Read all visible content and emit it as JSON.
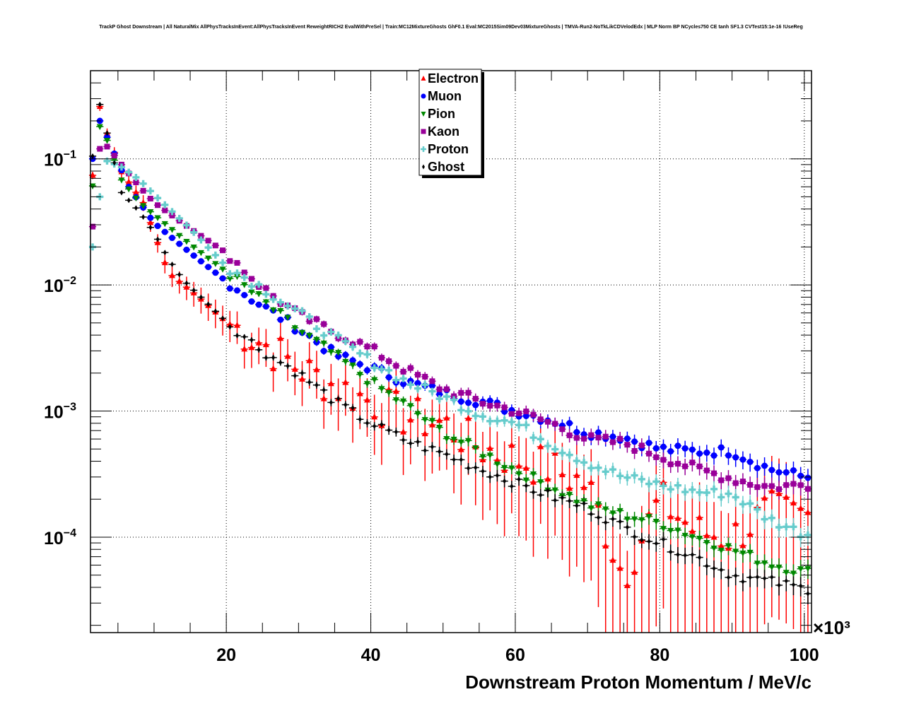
{
  "chart_data": {
    "type": "scatter",
    "title": "TrackP Ghost Downstream | All NaturalMix AllPhysTracksInEvent:AllPhysTracksInEvent ReweightRICH2 EvalWithPreSel | Train:MC12MixtureGhosts GhF0.1 Eval:MC2015Sim09Dev03MixtureGhosts | TMVA-Run2-NoTkLikCDVelodEdx | MLP Norm BP NCycles750 CE tanh SF1.3 CVTest15:1e-16 !UseReg",
    "xlabel": "Downstream Proton Momentum / MeV/c",
    "ylabel": "",
    "x_multiplier_label": "×10³",
    "xlim": [
      1.2,
      101
    ],
    "ylim": [
      1.75e-05,
      0.5
    ],
    "yscale": "log",
    "grid": true,
    "x_ticks": [
      "20",
      "40",
      "60",
      "80",
      "100"
    ],
    "x_tick_values": [
      20,
      40,
      60,
      80,
      100
    ],
    "y_ticks": [
      {
        "base": "10",
        "exp": "−1",
        "value": 0.1
      },
      {
        "base": "10",
        "exp": "−2",
        "value": 0.01
      },
      {
        "base": "10",
        "exp": "−3",
        "value": 0.001
      },
      {
        "base": "10",
        "exp": "−4",
        "value": 0.0001
      }
    ],
    "legend_position": "top-center",
    "x_anchor_note": "bin centres in thousands of MeV/c",
    "series": [
      {
        "name": "Electron",
        "color": "#ff0000",
        "marker": "triangle-up",
        "anchors": [
          [
            1.5,
            0.074
          ],
          [
            2.5,
            0.26
          ],
          [
            3.5,
            0.16
          ],
          [
            5.5,
            0.079
          ],
          [
            8.5,
            0.045
          ],
          [
            12,
            0.0125
          ],
          [
            16,
            0.0082
          ],
          [
            20,
            0.0051
          ],
          [
            25,
            0.0035
          ],
          [
            30,
            0.0022
          ],
          [
            35,
            0.0016
          ],
          [
            40,
            0.0012
          ],
          [
            45,
            0.0009
          ],
          [
            50,
            0.0008
          ],
          [
            55,
            0.00052
          ],
          [
            60,
            0.00042
          ],
          [
            65,
            0.00035
          ],
          [
            70,
            0.00026
          ],
          [
            75,
            5e-05
          ],
          [
            80,
            0.0002
          ],
          [
            85,
            0.00011
          ],
          [
            90,
            0.0001
          ],
          [
            95,
            0.00016
          ],
          [
            100,
            0.00015
          ]
        ]
      },
      {
        "name": "Muon",
        "color": "#0000ff",
        "marker": "circle",
        "anchors": [
          [
            1.5,
            0.1
          ],
          [
            2.5,
            0.2
          ],
          [
            4.5,
            0.11
          ],
          [
            6.5,
            0.06
          ],
          [
            10,
            0.031
          ],
          [
            15,
            0.018
          ],
          [
            20,
            0.0107
          ],
          [
            25,
            0.0068
          ],
          [
            30,
            0.0045
          ],
          [
            35,
            0.0028
          ],
          [
            40,
            0.0022
          ],
          [
            45,
            0.0017
          ],
          [
            50,
            0.0014
          ],
          [
            55,
            0.0012
          ],
          [
            60,
            0.001
          ],
          [
            65,
            0.00085
          ],
          [
            70,
            0.00068
          ],
          [
            75,
            0.00062
          ],
          [
            80,
            0.0005
          ],
          [
            85,
            0.00048
          ],
          [
            90,
            0.00048
          ],
          [
            95,
            0.00035
          ],
          [
            100,
            0.0003
          ]
        ]
      },
      {
        "name": "Pion",
        "color": "#008800",
        "marker": "triangle-down",
        "anchors": [
          [
            1.5,
            0.061
          ],
          [
            2.5,
            0.18
          ],
          [
            3.5,
            0.14
          ],
          [
            5.5,
            0.068
          ],
          [
            8,
            0.045
          ],
          [
            10,
            0.036
          ],
          [
            15,
            0.021
          ],
          [
            20,
            0.0127
          ],
          [
            25,
            0.0075
          ],
          [
            30,
            0.0044
          ],
          [
            35,
            0.0028
          ],
          [
            40,
            0.0017
          ],
          [
            45,
            0.0011
          ],
          [
            50,
            0.00068
          ],
          [
            55,
            0.00048
          ],
          [
            60,
            0.00034
          ],
          [
            65,
            0.00025
          ],
          [
            70,
            0.00018
          ],
          [
            75,
            0.00015
          ],
          [
            80,
            0.00013
          ],
          [
            85,
            0.0001
          ],
          [
            90,
            8e-05
          ],
          [
            95,
            6.2e-05
          ],
          [
            100,
            5.3e-05
          ]
        ]
      },
      {
        "name": "Kaon",
        "color": "#990099",
        "marker": "square",
        "anchors": [
          [
            1.5,
            0.029
          ],
          [
            2.5,
            0.12
          ],
          [
            3.5,
            0.125
          ],
          [
            5.5,
            0.09
          ],
          [
            8,
            0.06
          ],
          [
            10,
            0.045
          ],
          [
            15,
            0.028
          ],
          [
            20,
            0.018
          ],
          [
            25,
            0.0095
          ],
          [
            30,
            0.0058
          ],
          [
            35,
            0.0042
          ],
          [
            40,
            0.0031
          ],
          [
            45,
            0.0021
          ],
          [
            50,
            0.0015
          ],
          [
            55,
            0.0012
          ],
          [
            60,
            0.001
          ],
          [
            65,
            0.0008
          ],
          [
            70,
            0.0006
          ],
          [
            75,
            0.00056
          ],
          [
            80,
            0.00044
          ],
          [
            85,
            0.00035
          ],
          [
            90,
            0.00029
          ],
          [
            95,
            0.00025
          ],
          [
            100,
            0.00026
          ]
        ]
      },
      {
        "name": "Proton",
        "color": "#66cccc",
        "marker": "cross",
        "anchors": [
          [
            1.5,
            0.02
          ],
          [
            2.5,
            0.05
          ],
          [
            3.5,
            0.096
          ],
          [
            5.5,
            0.086
          ],
          [
            8,
            0.068
          ],
          [
            10,
            0.052
          ],
          [
            15,
            0.028
          ],
          [
            20,
            0.014
          ],
          [
            25,
            0.0095
          ],
          [
            30,
            0.006
          ],
          [
            35,
            0.0038
          ],
          [
            40,
            0.0025
          ],
          [
            45,
            0.0017
          ],
          [
            50,
            0.0013
          ],
          [
            55,
            0.00095
          ],
          [
            60,
            0.0008
          ],
          [
            65,
            0.00055
          ],
          [
            70,
            0.00039
          ],
          [
            75,
            0.0003
          ],
          [
            80,
            0.00026
          ],
          [
            85,
            0.00023
          ],
          [
            90,
            0.00022
          ],
          [
            95,
            0.00014
          ],
          [
            100,
            0.000106
          ]
        ]
      },
      {
        "name": "Ghost",
        "color": "#000000",
        "marker": "small-diamond",
        "anchors": [
          [
            1.5,
            0.105
          ],
          [
            2.5,
            0.27
          ],
          [
            3.5,
            0.16
          ],
          [
            5.5,
            0.054
          ],
          [
            8,
            0.038
          ],
          [
            10,
            0.026
          ],
          [
            12,
            0.016
          ],
          [
            14,
            0.011
          ],
          [
            17,
            0.0075
          ],
          [
            20,
            0.0051
          ],
          [
            25,
            0.003
          ],
          [
            30,
            0.002
          ],
          [
            35,
            0.0012
          ],
          [
            40,
            0.0008
          ],
          [
            45,
            0.00058
          ],
          [
            50,
            0.00046
          ],
          [
            55,
            0.00035
          ],
          [
            60,
            0.00027
          ],
          [
            65,
            0.00021
          ],
          [
            70,
            0.00017
          ],
          [
            75,
            0.00012
          ],
          [
            80,
            9e-05
          ],
          [
            85,
            7e-05
          ],
          [
            90,
            5e-05
          ],
          [
            95,
            4.5e-05
          ],
          [
            100,
            3.9e-05
          ]
        ]
      }
    ]
  }
}
